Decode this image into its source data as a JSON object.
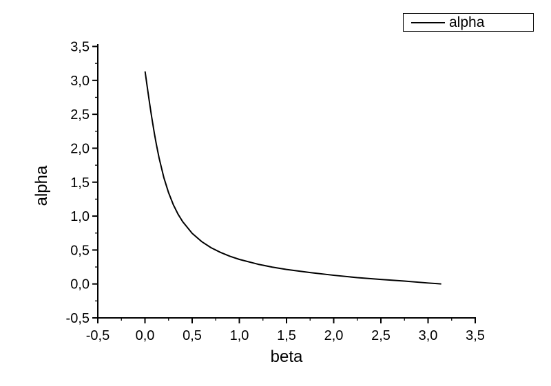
{
  "page": {
    "background_color": "#ffffff"
  },
  "chart_data": {
    "type": "line",
    "title": "",
    "xlabel": "beta",
    "ylabel": "alpha",
    "xlim": [
      -0.5,
      3.5
    ],
    "ylim": [
      -0.5,
      3.5
    ],
    "grid": false,
    "decimal_separator": ",",
    "axis_color": "#000000",
    "x_tick_values": [
      -0.5,
      0.0,
      0.5,
      1.0,
      1.5,
      2.0,
      2.5,
      3.0,
      3.5
    ],
    "x_tick_labels": [
      "-0,5",
      "0,0",
      "0,5",
      "1,0",
      "1,5",
      "2,0",
      "2,5",
      "3,0",
      "3,5"
    ],
    "y_tick_values": [
      -0.5,
      0.0,
      0.5,
      1.0,
      1.5,
      2.0,
      2.5,
      3.0,
      3.5
    ],
    "y_tick_labels": [
      "-0,5",
      "0,0",
      "0,5",
      "1,0",
      "1,5",
      "2,0",
      "2,5",
      "3,0",
      "3,5"
    ],
    "minor_ticks_between_majors": 1,
    "legend": {
      "position": "top-right",
      "label": "alpha",
      "line_color": "#000000"
    },
    "series": [
      {
        "name": "alpha",
        "color": "#000000",
        "line_width": 2,
        "points": [
          [
            0.001,
            3.132
          ],
          [
            0.01,
            3.042
          ],
          [
            0.03,
            2.844
          ],
          [
            0.05,
            2.652
          ],
          [
            0.07,
            2.468
          ],
          [
            0.1,
            2.214
          ],
          [
            0.12,
            2.061
          ],
          [
            0.15,
            1.853
          ],
          [
            0.2,
            1.567
          ],
          [
            0.25,
            1.345
          ],
          [
            0.3,
            1.169
          ],
          [
            0.35,
            1.029
          ],
          [
            0.4,
            0.917
          ],
          [
            0.5,
            0.746
          ],
          [
            0.6,
            0.625
          ],
          [
            0.7,
            0.534
          ],
          [
            0.8,
            0.465
          ],
          [
            0.9,
            0.408
          ],
          [
            1.0,
            0.362
          ],
          [
            1.2,
            0.29
          ],
          [
            1.35,
            0.248
          ],
          [
            1.5,
            0.214
          ],
          [
            1.75,
            0.168
          ],
          [
            2.0,
            0.128
          ],
          [
            2.25,
            0.093
          ],
          [
            2.5,
            0.066
          ],
          [
            2.75,
            0.042
          ],
          [
            3.0,
            0.014
          ],
          [
            3.1,
            0.004
          ],
          [
            3.14,
            0.0
          ]
        ]
      }
    ]
  }
}
